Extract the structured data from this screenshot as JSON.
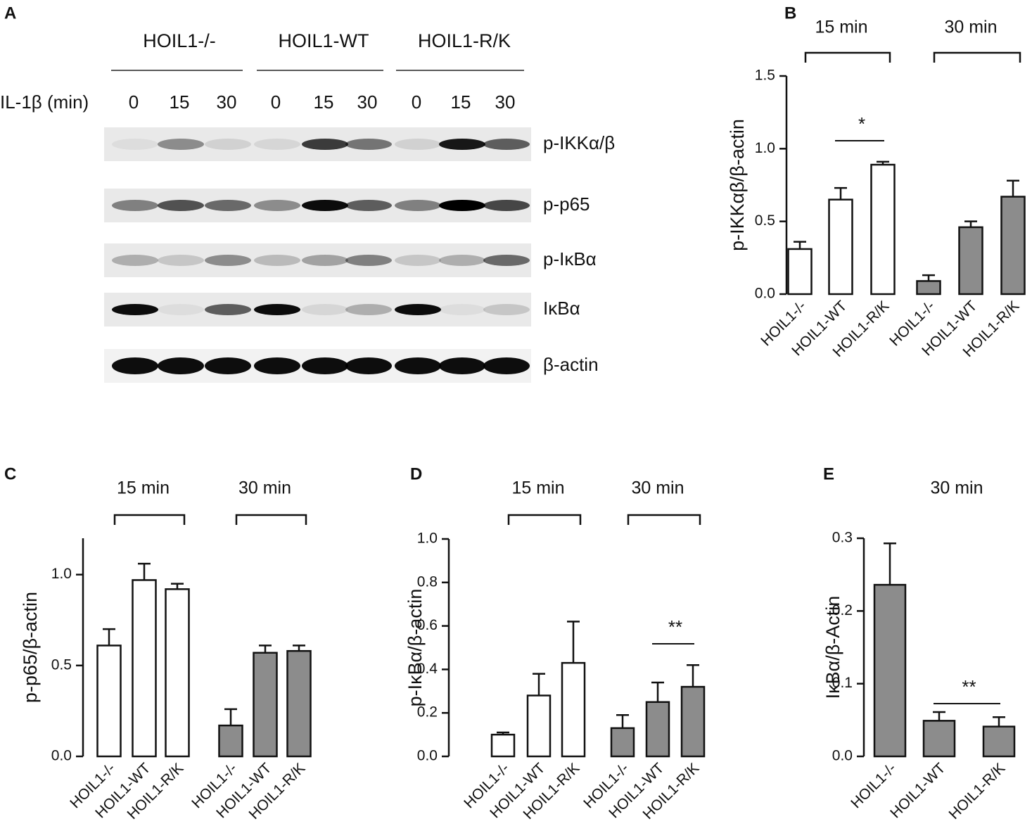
{
  "blot": {
    "panel": "A",
    "treatment": "IL-1β (min)",
    "groups": [
      "HOIL1-/-",
      "HOIL1-WT",
      "HOIL1-R/K"
    ],
    "lanes": [
      0,
      15,
      30,
      0,
      15,
      30,
      0,
      15,
      30
    ],
    "bands": [
      "p-IKKα/β",
      "p-p65",
      "p-IκBα",
      "IκBα",
      "β-actin"
    ]
  },
  "chart_data": [
    {
      "type": "bar",
      "panel": "B",
      "ylabel": "p-IKKαβ/β-actin",
      "categories": [
        "HOIL1-/-",
        "HOIL1-WT",
        "HOIL1-R/K"
      ],
      "series": [
        {
          "name": "15 min",
          "color": "#ffffff",
          "values": [
            0.31,
            0.65,
            0.89
          ],
          "errors": [
            0.05,
            0.08,
            0.02
          ]
        },
        {
          "name": "30 min",
          "color": "#8c8c8c",
          "values": [
            0.09,
            0.46,
            0.67
          ],
          "errors": [
            0.04,
            0.04,
            0.11
          ]
        }
      ],
      "ylim": [
        0,
        1.5
      ],
      "yticks": [
        {
          "value": 0,
          "label": "0.0"
        },
        {
          "value": 0.5,
          "label": "0.5"
        },
        {
          "value": 1,
          "label": "1.0"
        },
        {
          "value": 1.5,
          "label": "1.5"
        }
      ],
      "annotations": [
        {
          "text": "*"
        }
      ]
    },
    {
      "type": "bar",
      "panel": "C",
      "ylabel": "p-p65/β-actin",
      "categories": [
        "HOIL1-/-",
        "HOIL1-WT",
        "HOIL1-R/K"
      ],
      "series": [
        {
          "name": "15 min",
          "color": "#ffffff",
          "values": [
            0.61,
            0.97,
            0.92
          ],
          "errors": [
            0.09,
            0.09,
            0.03
          ]
        },
        {
          "name": "30 min",
          "color": "#8c8c8c",
          "values": [
            0.17,
            0.57,
            0.58
          ],
          "errors": [
            0.09,
            0.04,
            0.03
          ]
        }
      ],
      "ylim": [
        0,
        1.2
      ],
      "yticks": [
        {
          "value": 0,
          "label": "0.0"
        },
        {
          "value": 0.5,
          "label": "0.5"
        },
        {
          "value": 1,
          "label": "1.0"
        }
      ],
      "annotations": []
    },
    {
      "type": "bar",
      "panel": "D",
      "ylabel": "p-IκBα/β-actin",
      "categories": [
        "HOIL1-/-",
        "HOIL1-WT",
        "HOIL1-R/K"
      ],
      "series": [
        {
          "name": "15 min",
          "color": "#ffffff",
          "values": [
            0.1,
            0.28,
            0.43
          ],
          "errors": [
            0.01,
            0.1,
            0.19
          ]
        },
        {
          "name": "30 min",
          "color": "#8c8c8c",
          "values": [
            0.13,
            0.25,
            0.32
          ],
          "errors": [
            0.06,
            0.09,
            0.1
          ]
        }
      ],
      "ylim": [
        0,
        1
      ],
      "yticks": [
        {
          "value": 0,
          "label": "0.0"
        },
        0.2,
        0.4,
        0.6,
        0.8,
        {
          "value": 1,
          "label": "1.0"
        }
      ],
      "annotations": [
        {
          "text": "**"
        }
      ]
    },
    {
      "type": "bar",
      "panel": "E",
      "ylabel": "IκBα/β-Actin",
      "categories": [
        "HOIL1-/-",
        "HOIL1-WT",
        "HOIL1-R/K"
      ],
      "series": [
        {
          "name": "30 min",
          "color": "#8c8c8c",
          "values": [
            0.236,
            0.049,
            0.041
          ],
          "errors": [
            0.057,
            0.012,
            0.013
          ]
        }
      ],
      "ylim": [
        0,
        0.3
      ],
      "yticks": [
        {
          "value": 0,
          "label": "0.0"
        },
        0.1,
        0.2,
        0.3
      ],
      "annotations": [
        {
          "text": "**"
        }
      ]
    }
  ]
}
